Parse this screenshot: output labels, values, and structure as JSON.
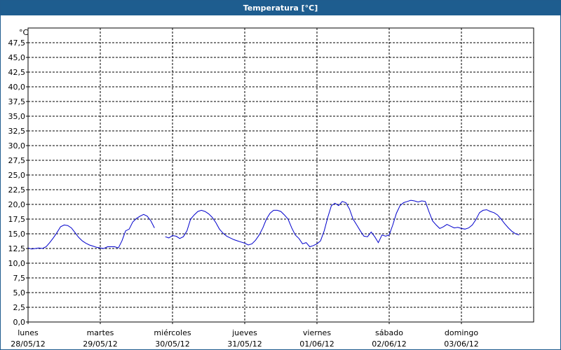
{
  "window": {
    "title": "Temperatura [°C]"
  },
  "chart_data": {
    "type": "line",
    "title": "Temperatura [°C]",
    "ylabel": "°C",
    "ylim": [
      0,
      50
    ],
    "yticks": [
      "0,0",
      "2,5",
      "5,0",
      "7,5",
      "10,0",
      "12,5",
      "15,0",
      "17,5",
      "20,0",
      "22,5",
      "25,0",
      "27,5",
      "30,0",
      "32,5",
      "35,0",
      "37,5",
      "40,0",
      "42,5",
      "45,0",
      "47,5"
    ],
    "xlim": [
      0,
      7
    ],
    "xtick_labels": [
      {
        "day": "lunes",
        "date": "28/05/12"
      },
      {
        "day": "martes",
        "date": "29/05/12"
      },
      {
        "day": "miércoles",
        "date": "30/05/12"
      },
      {
        "day": "jueves",
        "date": "31/05/12"
      },
      {
        "day": "viernes",
        "date": "01/06/12"
      },
      {
        "day": "sábado",
        "date": "02/06/12"
      },
      {
        "day": "domingo",
        "date": "03/06/12"
      }
    ],
    "grid": true,
    "line_color": "#0000cc",
    "series": [
      {
        "segments": [
          [
            [
              0.0,
              12.6
            ],
            [
              0.05,
              12.4
            ],
            [
              0.1,
              12.5
            ],
            [
              0.15,
              12.6
            ],
            [
              0.2,
              12.5
            ],
            [
              0.25,
              12.8
            ],
            [
              0.3,
              13.5
            ],
            [
              0.35,
              14.3
            ],
            [
              0.4,
              15.2
            ],
            [
              0.45,
              16.2
            ],
            [
              0.5,
              16.5
            ],
            [
              0.55,
              16.4
            ],
            [
              0.6,
              16.0
            ],
            [
              0.65,
              15.2
            ],
            [
              0.7,
              14.4
            ],
            [
              0.75,
              13.8
            ],
            [
              0.8,
              13.4
            ],
            [
              0.85,
              13.1
            ],
            [
              0.9,
              12.9
            ],
            [
              0.95,
              12.7
            ],
            [
              1.0,
              12.6
            ],
            [
              1.05,
              12.5
            ],
            [
              1.1,
              12.8
            ],
            [
              1.15,
              12.8
            ],
            [
              1.2,
              12.8
            ],
            [
              1.25,
              12.6
            ],
            [
              1.3,
              13.8
            ],
            [
              1.35,
              15.5
            ],
            [
              1.4,
              15.8
            ],
            [
              1.45,
              17.0
            ],
            [
              1.5,
              17.6
            ],
            [
              1.55,
              18.0
            ],
            [
              1.6,
              18.3
            ],
            [
              1.65,
              18.0
            ],
            [
              1.7,
              17.2
            ],
            [
              1.75,
              16.0
            ]
          ],
          [
            [
              1.9,
              14.5
            ],
            [
              1.95,
              14.3
            ],
            [
              2.0,
              14.7
            ],
            [
              2.05,
              14.6
            ],
            [
              2.1,
              14.2
            ],
            [
              2.15,
              14.5
            ],
            [
              2.2,
              15.5
            ],
            [
              2.25,
              17.5
            ],
            [
              2.3,
              18.2
            ],
            [
              2.35,
              18.8
            ],
            [
              2.4,
              19.0
            ],
            [
              2.45,
              18.8
            ],
            [
              2.5,
              18.4
            ],
            [
              2.55,
              17.8
            ],
            [
              2.6,
              16.9
            ],
            [
              2.65,
              15.8
            ],
            [
              2.7,
              15.1
            ],
            [
              2.75,
              14.6
            ],
            [
              2.8,
              14.3
            ],
            [
              2.85,
              14.0
            ],
            [
              2.9,
              13.8
            ],
            [
              2.95,
              13.6
            ],
            [
              3.0,
              13.4
            ],
            [
              3.05,
              13.1
            ],
            [
              3.1,
              13.3
            ],
            [
              3.15,
              13.9
            ],
            [
              3.2,
              14.8
            ],
            [
              3.25,
              16.0
            ],
            [
              3.3,
              17.5
            ],
            [
              3.35,
              18.5
            ],
            [
              3.4,
              19.0
            ],
            [
              3.45,
              19.0
            ],
            [
              3.5,
              18.8
            ],
            [
              3.55,
              18.2
            ],
            [
              3.6,
              17.5
            ],
            [
              3.65,
              16.0
            ],
            [
              3.7,
              14.8
            ],
            [
              3.75,
              14.2
            ],
            [
              3.8,
              13.3
            ],
            [
              3.85,
              13.5
            ],
            [
              3.9,
              12.8
            ],
            [
              3.95,
              13.0
            ],
            [
              4.0,
              13.3
            ],
            [
              4.05,
              13.8
            ],
            [
              4.1,
              15.5
            ],
            [
              4.15,
              17.8
            ],
            [
              4.2,
              19.8
            ],
            [
              4.25,
              20.2
            ],
            [
              4.3,
              19.8
            ],
            [
              4.35,
              20.5
            ],
            [
              4.4,
              20.3
            ],
            [
              4.45,
              19.2
            ],
            [
              4.5,
              17.5
            ],
            [
              4.55,
              16.5
            ],
            [
              4.6,
              15.5
            ],
            [
              4.65,
              14.6
            ],
            [
              4.7,
              14.5
            ],
            [
              4.75,
              15.3
            ],
            [
              4.8,
              14.5
            ],
            [
              4.85,
              13.5
            ],
            [
              4.9,
              14.8
            ],
            [
              4.95,
              14.6
            ],
            [
              5.0,
              14.8
            ],
            [
              5.05,
              16.5
            ],
            [
              5.1,
              18.5
            ],
            [
              5.15,
              19.8
            ],
            [
              5.2,
              20.3
            ],
            [
              5.25,
              20.5
            ],
            [
              5.3,
              20.7
            ],
            [
              5.35,
              20.6
            ],
            [
              5.4,
              20.4
            ],
            [
              5.45,
              20.6
            ],
            [
              5.5,
              20.5
            ],
            [
              5.55,
              18.8
            ],
            [
              5.6,
              17.2
            ],
            [
              5.65,
              16.5
            ],
            [
              5.7,
              15.9
            ],
            [
              5.75,
              16.2
            ],
            [
              5.8,
              16.6
            ],
            [
              5.85,
              16.3
            ],
            [
              5.9,
              16.0
            ],
            [
              5.95,
              16.1
            ],
            [
              6.0,
              15.9
            ],
            [
              6.05,
              15.8
            ],
            [
              6.1,
              16.0
            ],
            [
              6.15,
              16.5
            ],
            [
              6.2,
              17.4
            ],
            [
              6.25,
              18.6
            ],
            [
              6.3,
              19.0
            ],
            [
              6.35,
              19.1
            ],
            [
              6.4,
              18.8
            ],
            [
              6.45,
              18.6
            ],
            [
              6.5,
              18.2
            ],
            [
              6.55,
              17.5
            ],
            [
              6.6,
              16.7
            ],
            [
              6.65,
              16.0
            ],
            [
              6.7,
              15.4
            ],
            [
              6.75,
              15.0
            ],
            [
              6.8,
              14.8
            ]
          ]
        ]
      }
    ]
  }
}
